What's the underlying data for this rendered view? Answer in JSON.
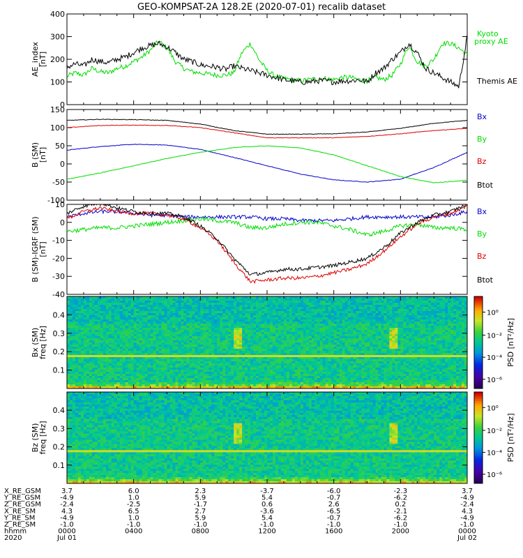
{
  "title": "GEO-KOMPSAT-2A 128.2E (2020-07-01) recalib dataset",
  "chart_data": [
    {
      "type": "line",
      "panel": "ae",
      "ylabel": [
        "AE_index",
        "[nT]"
      ],
      "ylim": [
        0,
        400
      ],
      "yticks": [
        0,
        100,
        200,
        300,
        400
      ],
      "xlim": [
        0,
        24
      ],
      "series": [
        {
          "name": "Kyoto proxy AE",
          "color": "#00dd00",
          "x": [
            0,
            0.5,
            1,
            1.5,
            2,
            2.5,
            3,
            3.5,
            4,
            4.5,
            5,
            5.5,
            6,
            6.5,
            7,
            7.5,
            8,
            8.5,
            9,
            9.5,
            10,
            10.5,
            11,
            11.5,
            12,
            12.5,
            13,
            13.5,
            14,
            14.5,
            15,
            15.5,
            16,
            16.5,
            17,
            17.5,
            18,
            18.5,
            19,
            19.5,
            20,
            20.5,
            21,
            21.5,
            22,
            22.5,
            23,
            23.5,
            24
          ],
          "y": [
            125,
            140,
            130,
            160,
            145,
            140,
            160,
            170,
            190,
            210,
            240,
            280,
            250,
            190,
            160,
            145,
            140,
            135,
            130,
            130,
            140,
            230,
            270,
            200,
            150,
            125,
            115,
            110,
            105,
            110,
            115,
            115,
            110,
            120,
            120,
            110,
            105,
            120,
            110,
            130,
            180,
            260,
            190,
            170,
            200,
            270,
            270,
            250,
            220
          ]
        },
        {
          "name": "Themis AE",
          "color": "#000000",
          "x": [
            0,
            0.5,
            1,
            1.5,
            2,
            2.5,
            3,
            3.5,
            4,
            4.5,
            5,
            5.5,
            6,
            6.5,
            7,
            7.5,
            8,
            8.5,
            9,
            9.5,
            10,
            10.5,
            11,
            11.5,
            12,
            12.5,
            13,
            13.5,
            14,
            14.5,
            15,
            15.5,
            16,
            16.5,
            17,
            17.5,
            18,
            18.5,
            19,
            19.5,
            20,
            20.5,
            21,
            21.5,
            22,
            22.5,
            23,
            23.5,
            24
          ],
          "y": [
            165,
            180,
            170,
            200,
            190,
            185,
            200,
            210,
            230,
            250,
            260,
            270,
            255,
            230,
            200,
            190,
            175,
            170,
            165,
            155,
            170,
            160,
            150,
            140,
            130,
            120,
            110,
            105,
            100,
            100,
            105,
            105,
            100,
            105,
            105,
            110,
            100,
            140,
            160,
            200,
            230,
            270,
            230,
            160,
            140,
            120,
            100,
            80,
            300
          ]
        }
      ]
    },
    {
      "type": "line",
      "panel": "b_sm",
      "ylabel": [
        "B (SM)",
        "[nT]"
      ],
      "ylim": [
        -100,
        150
      ],
      "yticks": [
        -100,
        -50,
        0,
        50,
        100,
        150
      ],
      "xlim": [
        0,
        24
      ],
      "series": [
        {
          "name": "Bx",
          "color": "#0000cc",
          "x": [
            0,
            2,
            4,
            6,
            8,
            10,
            12,
            14,
            16,
            18,
            20,
            22,
            24
          ],
          "y": [
            38,
            48,
            54,
            52,
            40,
            18,
            -5,
            -28,
            -44,
            -50,
            -42,
            -10,
            32
          ]
        },
        {
          "name": "By",
          "color": "#00dd00",
          "x": [
            0,
            2,
            4,
            6,
            8,
            10,
            12,
            14,
            16,
            18,
            20,
            22,
            24
          ],
          "y": [
            -42,
            -25,
            -5,
            15,
            32,
            45,
            50,
            44,
            25,
            -5,
            -35,
            -52,
            -45
          ]
        },
        {
          "name": "Bz",
          "color": "#dd0000",
          "x": [
            0,
            2,
            4,
            6,
            8,
            10,
            12,
            14,
            16,
            18,
            20,
            22,
            24
          ],
          "y": [
            100,
            106,
            107,
            106,
            100,
            86,
            72,
            72,
            72,
            76,
            83,
            92,
            98
          ]
        },
        {
          "name": "Btot",
          "color": "#000000",
          "x": [
            0,
            2,
            4,
            6,
            8,
            10,
            12,
            14,
            16,
            18,
            20,
            22,
            24
          ],
          "y": [
            120,
            123,
            122,
            120,
            110,
            92,
            82,
            82,
            83,
            88,
            98,
            112,
            120
          ]
        }
      ]
    },
    {
      "type": "line",
      "panel": "b_igrf",
      "ylabel": [
        "B (SM)-IGRF (SM)",
        "[nT]"
      ],
      "ylim": [
        -40,
        10
      ],
      "yticks": [
        -40,
        -30,
        -20,
        -10,
        0,
        10
      ],
      "xlim": [
        0,
        24
      ],
      "series": [
        {
          "name": "Bx",
          "color": "#0000cc",
          "x": [
            0,
            1,
            2,
            3,
            4,
            5,
            6,
            7,
            8,
            9,
            10,
            11,
            12,
            13,
            14,
            15,
            16,
            17,
            18,
            19,
            20,
            21,
            22,
            23,
            24
          ],
          "y": [
            3,
            5,
            6,
            6,
            5,
            4,
            4,
            3,
            3,
            3,
            3,
            3,
            2,
            2,
            1,
            1,
            1,
            2,
            3,
            3,
            3,
            3,
            3,
            4,
            6
          ]
        },
        {
          "name": "By",
          "color": "#00dd00",
          "x": [
            0,
            1,
            2,
            3,
            4,
            5,
            6,
            7,
            8,
            9,
            10,
            11,
            12,
            13,
            14,
            15,
            16,
            17,
            18,
            19,
            20,
            21,
            22,
            23,
            24
          ],
          "y": [
            -5,
            -4,
            -3,
            -3,
            -2,
            -1,
            0,
            1,
            2,
            1,
            0,
            -3,
            -3,
            -1,
            0,
            0,
            -2,
            -4,
            -7,
            -5,
            -2,
            -1,
            -3,
            -3,
            -4
          ]
        },
        {
          "name": "Bz",
          "color": "#dd0000",
          "x": [
            0,
            1,
            2,
            3,
            4,
            5,
            6,
            7,
            8,
            9,
            10,
            11,
            12,
            13,
            14,
            15,
            16,
            17,
            18,
            19,
            20,
            21,
            22,
            23,
            24
          ],
          "y": [
            2,
            6,
            8,
            6,
            5,
            5,
            4,
            2,
            -3,
            -10,
            -22,
            -33,
            -32,
            -31,
            -31,
            -30,
            -28,
            -26,
            -23,
            -16,
            -8,
            -1,
            3,
            5,
            9
          ]
        },
        {
          "name": "Btot",
          "color": "#000000",
          "x": [
            0,
            1,
            2,
            3,
            4,
            5,
            6,
            7,
            8,
            9,
            10,
            11,
            12,
            13,
            14,
            15,
            16,
            17,
            18,
            19,
            20,
            21,
            22,
            23,
            24
          ],
          "y": [
            5,
            9,
            11,
            8,
            6,
            5,
            5,
            3,
            -2,
            -9,
            -20,
            -29,
            -28,
            -26,
            -26,
            -25,
            -24,
            -22,
            -20,
            -14,
            -6,
            0,
            4,
            6,
            10
          ]
        }
      ]
    },
    {
      "type": "heatmap",
      "panel": "spec_bx",
      "ylabel": [
        "Bx (SM)",
        "freq  [Hz]"
      ],
      "yticks": [
        0.1,
        0.2,
        0.3,
        0.4
      ],
      "ylim": [
        0,
        0.5
      ],
      "xlim": [
        0,
        24
      ],
      "colorbar": {
        "label": "PSD [nT²/Hz]",
        "ticks": [
          "10⁰",
          "10⁻²",
          "10⁻⁴",
          "10⁻⁶"
        ]
      }
    },
    {
      "type": "heatmap",
      "panel": "spec_bz",
      "ylabel": [
        "Bz (SM)",
        "freq  [Hz]"
      ],
      "yticks": [
        0.1,
        0.2,
        0.3,
        0.4
      ],
      "ylim": [
        0,
        0.5
      ],
      "xlim": [
        0,
        24
      ],
      "colorbar": {
        "label": "PSD [nT²/Hz]",
        "ticks": [
          "10⁰",
          "10⁻²",
          "10⁻⁴",
          "10⁻⁶"
        ]
      }
    }
  ],
  "legend_ae": [
    "Kyoto",
    "proxy AE",
    "Themis AE"
  ],
  "ephemeris": {
    "labels": [
      "X_RE_GSM",
      "Y_RE_GSM",
      "Z_RE_GSM",
      "X_RE_SM",
      "Y_RE_SM",
      "Z_RE_SM",
      "hhmm",
      "2020"
    ],
    "columns": [
      [
        "3.7",
        "-4.9",
        "-2.4",
        "4.3",
        "-4.9",
        "-1.0",
        "0000",
        "Jul 01"
      ],
      [
        "6.0",
        "1.0",
        "-2.5",
        "6.5",
        "1.0",
        "-1.0",
        "0400",
        ""
      ],
      [
        "2.3",
        "5.9",
        "-1.7",
        "2.7",
        "5.9",
        "-1.0",
        "0800",
        ""
      ],
      [
        "-3.7",
        "5.4",
        "0.6",
        "-3.6",
        "5.4",
        "-1.0",
        "1200",
        ""
      ],
      [
        "-6.0",
        "-0.7",
        "2.6",
        "-6.5",
        "-0.7",
        "-1.0",
        "1600",
        ""
      ],
      [
        "-2.3",
        "-6.2",
        "0.2",
        "-2.1",
        "-6.2",
        "-1.0",
        "2000",
        ""
      ],
      [
        "3.7",
        "-4.9",
        "-2.4",
        "4.3",
        "-4.9",
        "-1.0",
        "0000",
        "Jul 02"
      ]
    ]
  }
}
